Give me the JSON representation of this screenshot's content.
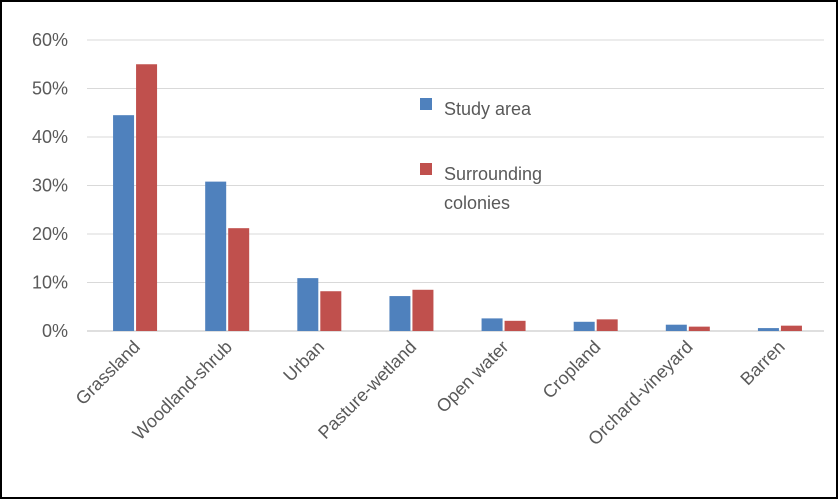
{
  "chart_data": {
    "type": "bar",
    "categories": [
      "Grassland",
      "Woodland-shrub",
      "Urban",
      "Pasture-wetland",
      "Open water",
      "Cropland",
      "Orchard-vineyard",
      "Barren"
    ],
    "series": [
      {
        "name": "Study area",
        "color": "#4f81bd",
        "values": [
          44.5,
          30.8,
          10.9,
          7.2,
          2.6,
          1.9,
          1.3,
          0.6
        ]
      },
      {
        "name": "Surrounding colonies",
        "color": "#c0504d",
        "values": [
          55.0,
          21.2,
          8.2,
          8.5,
          2.1,
          2.4,
          0.9,
          1.1
        ]
      }
    ],
    "ylim": [
      0,
      60
    ],
    "yticks": [
      "0%",
      "10%",
      "20%",
      "30%",
      "40%",
      "50%",
      "60%"
    ],
    "grid": true,
    "legend": {
      "position": "top-right (inside plot)",
      "entries": [
        {
          "lines": [
            "Study area"
          ]
        },
        {
          "lines": [
            "Surrounding",
            "colonies"
          ]
        }
      ]
    },
    "title": "",
    "xlabel": "",
    "ylabel": ""
  }
}
